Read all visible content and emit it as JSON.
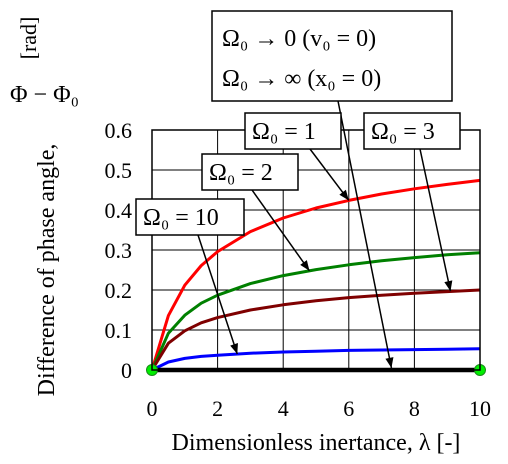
{
  "chart_data": {
    "type": "line",
    "xlabel": "Dimensionless inertance, λ [-]",
    "ylabel": "Difference of phase angle,",
    "ylabel_symbol": "Φ − Φ₀",
    "ylabel_unit": "[rad]",
    "xlim": [
      0,
      10
    ],
    "ylim": [
      0,
      0.6
    ],
    "x_ticks": [
      "0",
      "2",
      "4",
      "6",
      "8",
      "10"
    ],
    "y_ticks": [
      "0",
      "0.1",
      "0.2",
      "0.3",
      "0.4",
      "0.5",
      "0.6"
    ],
    "grid": true,
    "x": [
      0,
      0.5,
      1,
      1.5,
      2,
      3,
      4,
      5,
      6,
      7,
      8,
      9,
      10
    ],
    "series": [
      {
        "label": "Ω₀ = 1",
        "color": "#ff0000",
        "values": [
          0,
          0.136,
          0.212,
          0.261,
          0.296,
          0.346,
          0.38,
          0.405,
          0.424,
          0.44,
          0.453,
          0.464,
          0.474
        ]
      },
      {
        "label": "Ω₀ = 2",
        "color": "#008000",
        "values": [
          0,
          0.092,
          0.137,
          0.167,
          0.187,
          0.216,
          0.236,
          0.251,
          0.263,
          0.273,
          0.281,
          0.288,
          0.293
        ]
      },
      {
        "label": "Ω₀ = 3",
        "color": "#7f0000",
        "values": [
          0,
          0.067,
          0.098,
          0.118,
          0.131,
          0.15,
          0.163,
          0.173,
          0.181,
          0.187,
          0.192,
          0.196,
          0.2
        ]
      },
      {
        "label": "Ω₀ = 10",
        "color": "#0000ff",
        "values": [
          0,
          0.02,
          0.029,
          0.034,
          0.037,
          0.042,
          0.045,
          0.047,
          0.049,
          0.05,
          0.051,
          0.052,
          0.053
        ]
      },
      {
        "label": "Ω₀ → 0 (v₀ = 0), Ω₀ → ∞ (x₀ = 0)",
        "color": "#000000",
        "values": [
          0,
          0,
          0,
          0,
          0,
          0,
          0,
          0,
          0,
          0,
          0,
          0,
          0
        ]
      }
    ],
    "annotations": [
      {
        "text": "Ω₀ = 1"
      },
      {
        "text": "Ω₀ = 2"
      },
      {
        "text": "Ω₀ = 3"
      },
      {
        "text": "Ω₀ = 10"
      },
      {
        "line1": "Ω₀ → 0   (v₀ = 0)",
        "line2": "Ω₀ → ∞   (x₀ = 0)"
      }
    ],
    "endpoint_markers": [
      {
        "x": 0,
        "y": 0
      },
      {
        "x": 10,
        "y": 0
      }
    ],
    "endpoint_color": "#00ee00"
  }
}
